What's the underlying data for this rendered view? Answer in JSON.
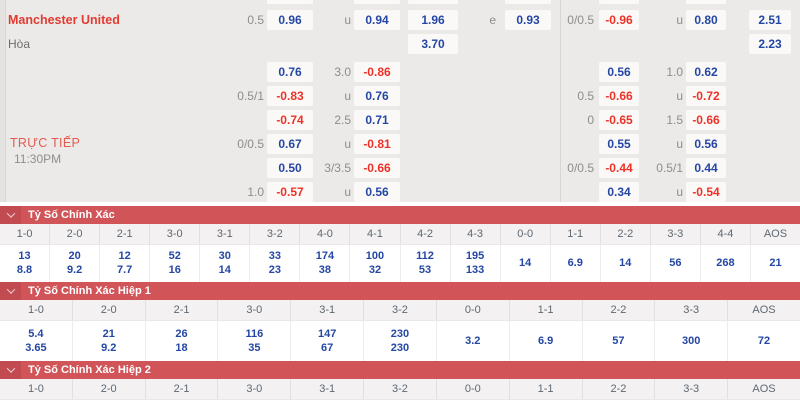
{
  "match": {
    "home_team": "Manchester United",
    "draw_label": "Hòa",
    "live_label": "TRỰC TIẾP",
    "time": "11:30PM"
  },
  "colors": {
    "section_bar_red": "#d15459",
    "section_bar_square_red": "#c24b51",
    "odds_positive_blue": "#2447a4",
    "odds_negative_red": "#ee3126",
    "home_team_red": "#e23b31",
    "live_red": "#e25a50"
  },
  "odds_grid": {
    "box_cols": [
      "c1",
      "c2",
      "c3",
      "x12",
      "rc1",
      "rc2",
      "rr"
    ],
    "cut_row_cols": [
      "c1",
      "c2",
      "x12",
      "c3",
      "rc1",
      "rc2"
    ],
    "rows": [
      {
        "id": "a",
        "cells": [
          {
            "col": "h1",
            "text": "0.5"
          },
          {
            "col": "c1",
            "text": "0.96"
          },
          {
            "col": "m1",
            "text": "u"
          },
          {
            "col": "c2",
            "text": "0.94"
          },
          {
            "col": "x12",
            "text": "1.96"
          },
          {
            "col": "e",
            "text": "e"
          },
          {
            "col": "c3",
            "text": "0.93"
          },
          {
            "col": "rh",
            "text": "0/0.5"
          },
          {
            "col": "rc1",
            "text": "-0.96"
          },
          {
            "col": "rm",
            "text": "u"
          },
          {
            "col": "rc2",
            "text": "0.80"
          },
          {
            "col": "rr",
            "text": "2.51"
          }
        ]
      },
      {
        "id": "b",
        "cells": [
          {
            "col": "x12",
            "text": "3.70"
          },
          {
            "col": "rr",
            "text": "2.23"
          }
        ]
      },
      {
        "id": "c",
        "cells": [
          {
            "col": "c1",
            "text": "0.76"
          },
          {
            "col": "m1",
            "text": "3.0"
          },
          {
            "col": "c2",
            "text": "-0.86"
          },
          {
            "col": "rc1",
            "text": "0.56"
          },
          {
            "col": "rm",
            "text": "1.0"
          },
          {
            "col": "rc2",
            "text": "0.62"
          }
        ]
      },
      {
        "id": "d",
        "cells": [
          {
            "col": "h1",
            "text": "0.5/1"
          },
          {
            "col": "c1",
            "text": "-0.83"
          },
          {
            "col": "m1",
            "text": "u"
          },
          {
            "col": "c2",
            "text": "0.76"
          },
          {
            "col": "rh",
            "text": "0.5"
          },
          {
            "col": "rc1",
            "text": "-0.66"
          },
          {
            "col": "rm",
            "text": "u"
          },
          {
            "col": "rc2",
            "text": "-0.72"
          }
        ]
      },
      {
        "id": "e",
        "cells": [
          {
            "col": "c1",
            "text": "-0.74"
          },
          {
            "col": "m1",
            "text": "2.5"
          },
          {
            "col": "c2",
            "text": "0.71"
          },
          {
            "col": "rh",
            "text": "0"
          },
          {
            "col": "rc1",
            "text": "-0.65"
          },
          {
            "col": "rm",
            "text": "1.5"
          },
          {
            "col": "rc2",
            "text": "-0.66"
          }
        ]
      },
      {
        "id": "f",
        "cells": [
          {
            "col": "h1",
            "text": "0/0.5"
          },
          {
            "col": "c1",
            "text": "0.67"
          },
          {
            "col": "m1",
            "text": "u"
          },
          {
            "col": "c2",
            "text": "-0.81"
          },
          {
            "col": "rc1",
            "text": "0.55"
          },
          {
            "col": "rm",
            "text": "u"
          },
          {
            "col": "rc2",
            "text": "0.56"
          }
        ]
      },
      {
        "id": "g",
        "cells": [
          {
            "col": "c1",
            "text": "0.50"
          },
          {
            "col": "m1",
            "text": "3/3.5"
          },
          {
            "col": "c2",
            "text": "-0.66"
          },
          {
            "col": "rh",
            "text": "0/0.5"
          },
          {
            "col": "rc1",
            "text": "-0.44"
          },
          {
            "col": "rm",
            "text": "0.5/1"
          },
          {
            "col": "rc2",
            "text": "0.44"
          }
        ]
      },
      {
        "id": "h",
        "cells": [
          {
            "col": "h1",
            "text": "1.0"
          },
          {
            "col": "c1",
            "text": "-0.57"
          },
          {
            "col": "m1",
            "text": "u"
          },
          {
            "col": "c2",
            "text": "0.56"
          },
          {
            "col": "rc1",
            "text": "0.34"
          },
          {
            "col": "rm",
            "text": "u"
          },
          {
            "col": "rc2",
            "text": "-0.54"
          }
        ]
      }
    ]
  },
  "score_sections": [
    {
      "title": "Tỷ Số Chính Xác",
      "columns": [
        "1-0",
        "2-0",
        "2-1",
        "3-0",
        "3-1",
        "3-2",
        "4-0",
        "4-1",
        "4-2",
        "4-3",
        "0-0",
        "1-1",
        "2-2",
        "3-3",
        "4-4",
        "AOS"
      ],
      "values": [
        [
          "13",
          "8.8"
        ],
        [
          "20",
          "9.2"
        ],
        [
          "12",
          "7.7"
        ],
        [
          "52",
          "16"
        ],
        [
          "30",
          "14"
        ],
        [
          "33",
          "23"
        ],
        [
          "174",
          "38"
        ],
        [
          "100",
          "32"
        ],
        [
          "112",
          "53"
        ],
        [
          "195",
          "133"
        ],
        [
          "14"
        ],
        [
          "6.9"
        ],
        [
          "14"
        ],
        [
          "56"
        ],
        [
          "268"
        ],
        [
          "21"
        ]
      ]
    },
    {
      "title": "Tỷ Số Chính Xác Hiệp 1",
      "columns": [
        "1-0",
        "2-0",
        "2-1",
        "3-0",
        "3-1",
        "3-2",
        "0-0",
        "1-1",
        "2-2",
        "3-3",
        "AOS"
      ],
      "values": [
        [
          "5.4",
          "3.65"
        ],
        [
          "21",
          "9.2"
        ],
        [
          "26",
          "18"
        ],
        [
          "116",
          "35"
        ],
        [
          "147",
          "67"
        ],
        [
          "230",
          "230"
        ],
        [
          "3.2"
        ],
        [
          "6.9"
        ],
        [
          "57"
        ],
        [
          "300"
        ],
        [
          "72"
        ]
      ]
    },
    {
      "title": "Tỷ Số Chính Xác Hiệp 2",
      "columns": [
        "1-0",
        "2-0",
        "2-1",
        "3-0",
        "3-1",
        "3-2",
        "0-0",
        "1-1",
        "2-2",
        "3-3",
        "AOS"
      ],
      "values": []
    }
  ]
}
